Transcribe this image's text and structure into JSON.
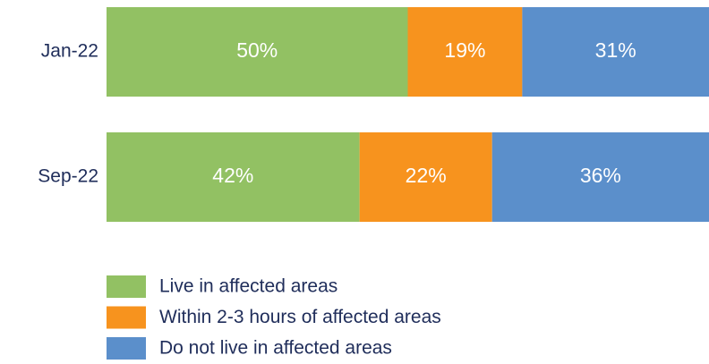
{
  "chart_data": {
    "type": "stacked-bar-horizontal",
    "categories": [
      "Jan-22",
      "Sep-22"
    ],
    "xlim": [
      0,
      100
    ],
    "series": [
      {
        "name": "Live in affected areas",
        "color": "#92c163",
        "values": [
          50,
          42
        ],
        "value_labels": [
          "50%",
          "42%"
        ]
      },
      {
        "name": "Within 2-3 hours of affected areas",
        "color": "#f7931e",
        "values": [
          19,
          22
        ],
        "value_labels": [
          "19%",
          "22%"
        ]
      },
      {
        "name": "Do not live in affected areas",
        "color": "#5b8fcb",
        "values": [
          31,
          36
        ],
        "value_labels": [
          "31%",
          "36%"
        ]
      }
    ]
  }
}
